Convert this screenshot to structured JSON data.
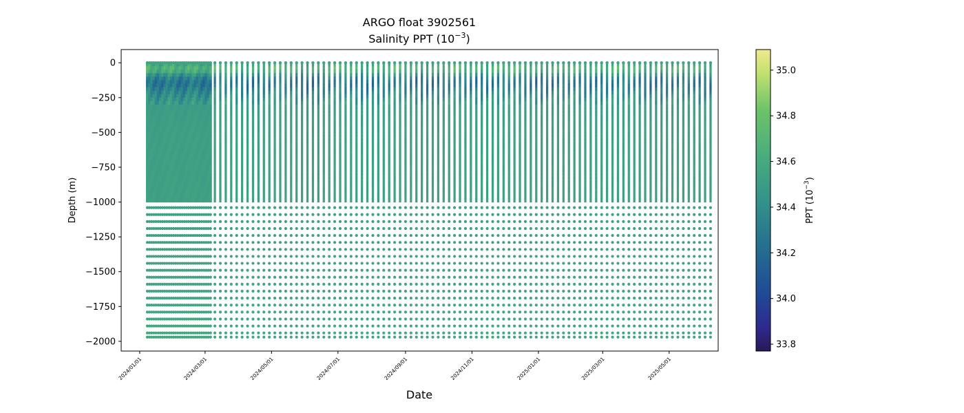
{
  "chart_data": {
    "type": "scatter",
    "title_line1": "ARGO float 3902561",
    "title_line2_base": "Salinity PPT (10",
    "title_line2_exp": "−3",
    "title_line2_close": ")",
    "xlabel": "Date",
    "ylabel": "Depth (m)",
    "colorbar_label_base": "PPT (10",
    "colorbar_label_exp": "−3",
    "colorbar_label_close": ")",
    "colormap": "haline",
    "color_range": [
      33.77,
      35.09
    ],
    "x_range": [
      "2023-12-15",
      "2025-06-15"
    ],
    "y_range": [
      -2070,
      95
    ],
    "x_ticks": [
      {
        "date": "2024-01-01",
        "label": "2024/01/01"
      },
      {
        "date": "2024-03-01",
        "label": "2024/03/01"
      },
      {
        "date": "2024-05-01",
        "label": "2024/05/01"
      },
      {
        "date": "2024-07-01",
        "label": "2024/07/01"
      },
      {
        "date": "2024-09-01",
        "label": "2024/09/01"
      },
      {
        "date": "2024-11-01",
        "label": "2024/11/01"
      },
      {
        "date": "2025-01-01",
        "label": "2025/01/01"
      },
      {
        "date": "2025-03-01",
        "label": "2025/03/01"
      },
      {
        "date": "2025-05-01",
        "label": "2025/05/01"
      }
    ],
    "y_ticks": [
      {
        "value": 0,
        "label": "0"
      },
      {
        "value": -250,
        "label": "−250"
      },
      {
        "value": -500,
        "label": "−500"
      },
      {
        "value": -750,
        "label": "−750"
      },
      {
        "value": -1000,
        "label": "−1000"
      },
      {
        "value": -1250,
        "label": "−1250"
      },
      {
        "value": -1500,
        "label": "−1500"
      },
      {
        "value": -1750,
        "label": "−1750"
      },
      {
        "value": -2000,
        "label": "−2000"
      }
    ],
    "colorbar_ticks": [
      {
        "value": 33.8,
        "label": "33.8"
      },
      {
        "value": 34.0,
        "label": "34.0"
      },
      {
        "value": 34.2,
        "label": "34.2"
      },
      {
        "value": 34.4,
        "label": "34.4"
      },
      {
        "value": 34.6,
        "label": "34.6"
      },
      {
        "value": 34.8,
        "label": "34.8"
      },
      {
        "value": 35.0,
        "label": "35.0"
      }
    ],
    "profiles": {
      "dense_period": {
        "start": "2024-01-08",
        "end": "2024-03-06",
        "interval_days": 2
      },
      "regular_period": {
        "start": "2024-03-10",
        "end": "2025-06-10",
        "interval_days": 5
      },
      "continuous_depth_range": [
        0,
        -1000
      ],
      "deep_sample_depths": [
        -1040,
        -1090,
        -1140,
        -1190,
        -1240,
        -1290,
        -1340,
        -1390,
        -1440,
        -1490,
        -1540,
        -1590,
        -1640,
        -1690,
        -1740,
        -1790,
        -1840,
        -1890,
        -1940,
        -1970
      ]
    },
    "salinity_profile": [
      {
        "depth": 0,
        "value": 34.55
      },
      {
        "depth": -50,
        "value": 34.7
      },
      {
        "depth": -100,
        "value": 34.35
      },
      {
        "depth": -150,
        "value": 34.25
      },
      {
        "depth": -200,
        "value": 34.35
      },
      {
        "depth": -300,
        "value": 34.5
      },
      {
        "depth": -500,
        "value": 34.52
      },
      {
        "depth": -1000,
        "value": 34.53
      },
      {
        "depth": -2000,
        "value": 34.58
      }
    ]
  }
}
